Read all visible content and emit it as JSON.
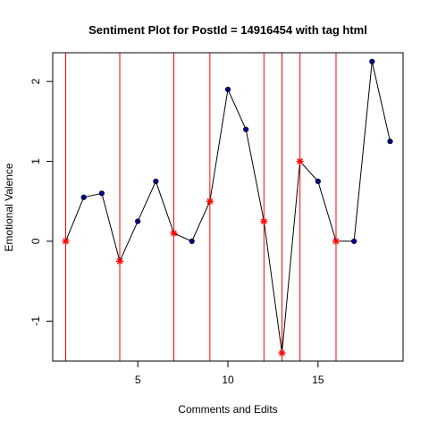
{
  "chart_data": {
    "type": "line",
    "title": "Sentiment Plot for PostId =  14916454  with tag  html",
    "xlabel": "Comments and Edits",
    "ylabel": "Emotional Valence",
    "xlim": [
      0.28,
      19.72
    ],
    "ylim": [
      -1.5,
      2.36
    ],
    "x_ticks": [
      5,
      10,
      15
    ],
    "y_ticks": [
      -1,
      0,
      1,
      2
    ],
    "grid": false,
    "x": [
      1,
      2,
      3,
      4,
      5,
      6,
      7,
      8,
      9,
      10,
      11,
      12,
      13,
      14,
      15,
      16,
      17,
      18,
      19
    ],
    "series": [
      {
        "values": [
          0,
          0.55,
          0.6,
          -0.25,
          0.25,
          0.75,
          0.1,
          0,
          0.5,
          1.9,
          1.4,
          0.25,
          -1.4,
          1,
          0.75,
          0,
          0,
          2.25,
          1.25
        ]
      }
    ],
    "edit_points": [
      1,
      4,
      7,
      9,
      12,
      13,
      14,
      16
    ],
    "colors": {
      "line": "#000000",
      "point": "#00008b",
      "edit_marker": "#ff0000",
      "edit_line": "#ff0000"
    }
  }
}
